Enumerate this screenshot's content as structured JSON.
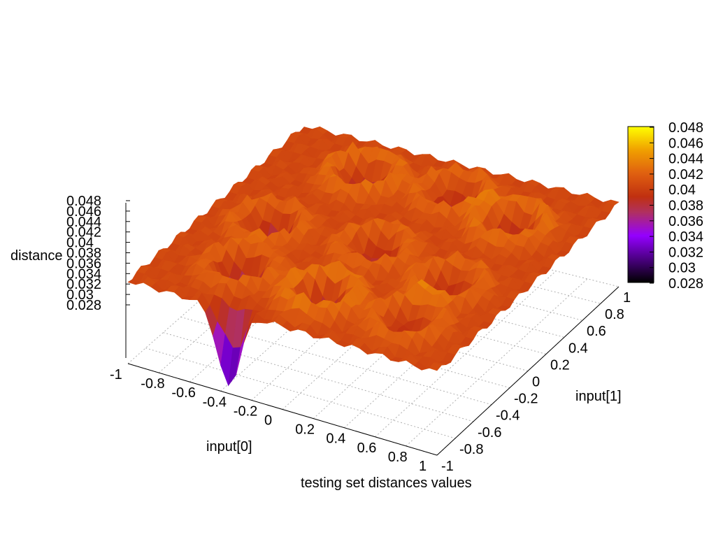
{
  "chart_data": {
    "type": "surface3d",
    "title": "testing set distances values",
    "xlabel": "input[0]",
    "ylabel": "input[1]",
    "zlabel": "distance",
    "x_ticks": [
      "-1",
      "-0.8",
      "-0.6",
      "-0.4",
      "-0.2",
      "0",
      "0.2",
      "0.4",
      "0.6",
      "0.8",
      "1"
    ],
    "y_ticks": [
      "-1",
      "-0.8",
      "-0.6",
      "-0.4",
      "-0.2",
      "0",
      "0.2",
      "0.4",
      "0.6",
      "0.8",
      "1"
    ],
    "z_ticks": [
      "0.028",
      "0.03",
      "0.032",
      "0.034",
      "0.036",
      "0.038",
      "0.04",
      "0.042",
      "0.044",
      "0.046",
      "0.048"
    ],
    "colorbar_ticks": [
      "0.028",
      "0.03",
      "0.032",
      "0.034",
      "0.036",
      "0.038",
      "0.04",
      "0.042",
      "0.044",
      "0.046",
      "0.048"
    ],
    "xlim": [
      -1,
      1
    ],
    "ylim": [
      -1,
      1
    ],
    "zlim": [
      0.028,
      0.048
    ],
    "cblim": [
      0.028,
      0.048
    ],
    "grid": true,
    "palette": [
      "#000000",
      "#4b0082",
      "#9400ff",
      "#b03060",
      "#c03010",
      "#e06010",
      "#f0a000",
      "#ffff00"
    ],
    "surface": {
      "baseline": 0.0405,
      "features": [
        {
          "x": -0.4,
          "y": 0.6,
          "depth": 0.004,
          "ring": 0.0025
        },
        {
          "x": 0.15,
          "y": 0.65,
          "depth": 0.003,
          "ring": 0.002
        },
        {
          "x": 0.6,
          "y": 0.5,
          "depth": 0.003,
          "ring": 0.0025
        },
        {
          "x": -0.6,
          "y": -0.1,
          "depth": 0.005,
          "ring": 0.002
        },
        {
          "x": 0.05,
          "y": -0.05,
          "depth": 0.003,
          "ring": 0.002
        },
        {
          "x": 0.6,
          "y": -0.2,
          "depth": 0.0025,
          "ring": 0.002
        },
        {
          "x": -0.5,
          "y": -0.6,
          "depth": 0.006,
          "ring": 0.002
        },
        {
          "x": 0.05,
          "y": -0.65,
          "depth": 0.004,
          "ring": 0.003
        },
        {
          "x": 0.6,
          "y": -0.65,
          "depth": 0.002,
          "ring": 0.002
        }
      ],
      "min_point": {
        "x": -0.35,
        "y": -1,
        "z": 0.029
      }
    }
  }
}
